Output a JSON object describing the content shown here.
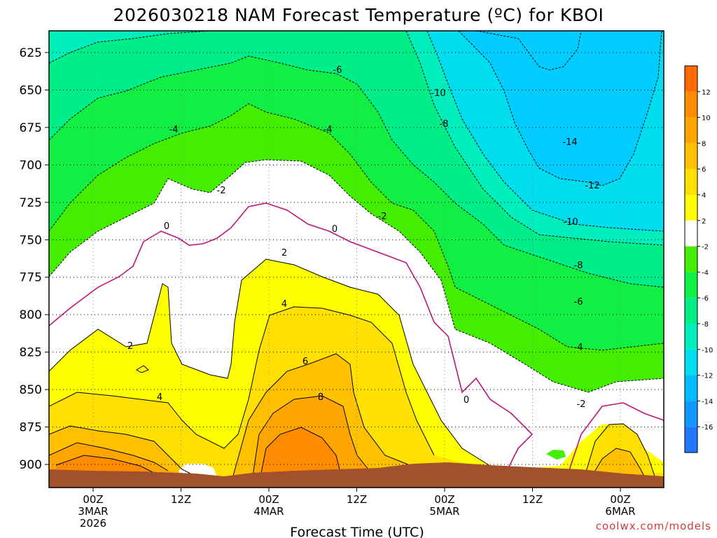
{
  "chart_data": {
    "type": "heatmap",
    "title": "2026030218 NAM Forecast Temperature (ºC) for KBOI",
    "xlabel": "Forecast Time (UTC)",
    "ylabel": "",
    "y_axis": {
      "inverted": true,
      "ticks": [
        "625",
        "650",
        "675",
        "700",
        "725",
        "750",
        "775",
        "800",
        "825",
        "850",
        "875",
        "900"
      ]
    },
    "x_axis": {
      "ticks": [
        {
          "line1": "00Z",
          "line2": "3MAR",
          "line3": "2026"
        },
        {
          "line1": "12Z",
          "line2": "",
          "line3": ""
        },
        {
          "line1": "00Z",
          "line2": "4MAR",
          "line3": ""
        },
        {
          "line1": "12Z",
          "line2": "",
          "line3": ""
        },
        {
          "line1": "00Z",
          "line2": "5MAR",
          "line3": ""
        },
        {
          "line1": "12Z",
          "line2": "",
          "line3": ""
        },
        {
          "line1": "00Z",
          "line2": "6MAR",
          "line3": ""
        }
      ]
    },
    "grid": true,
    "colorbar": {
      "placement": "right",
      "labels": [
        "12",
        "10",
        "8",
        "6",
        "4",
        "2",
        "-2",
        "-4",
        "-6",
        "-8",
        "-10",
        "-12",
        "-14",
        "-16"
      ],
      "colors": [
        "#ff6a00",
        "#ff8c00",
        "#ffa500",
        "#ffc000",
        "#ffe000",
        "#ffff00",
        "#ffffff",
        "#44ee00",
        "#11ee44",
        "#00ee88",
        "#00eebb",
        "#00ddee",
        "#00bbff",
        "#1199ff",
        "#2277ff"
      ]
    },
    "contour_labels": [
      "-14",
      "-12",
      "-10",
      "-8",
      "-6",
      "-4",
      "-2",
      "0",
      "2",
      "4",
      "6",
      "8"
    ],
    "colors": {
      "surface": "#a0522d",
      "freezing_line": "#c0157a",
      "contour": "#000000"
    }
  },
  "credit": "coolwx.com/models"
}
